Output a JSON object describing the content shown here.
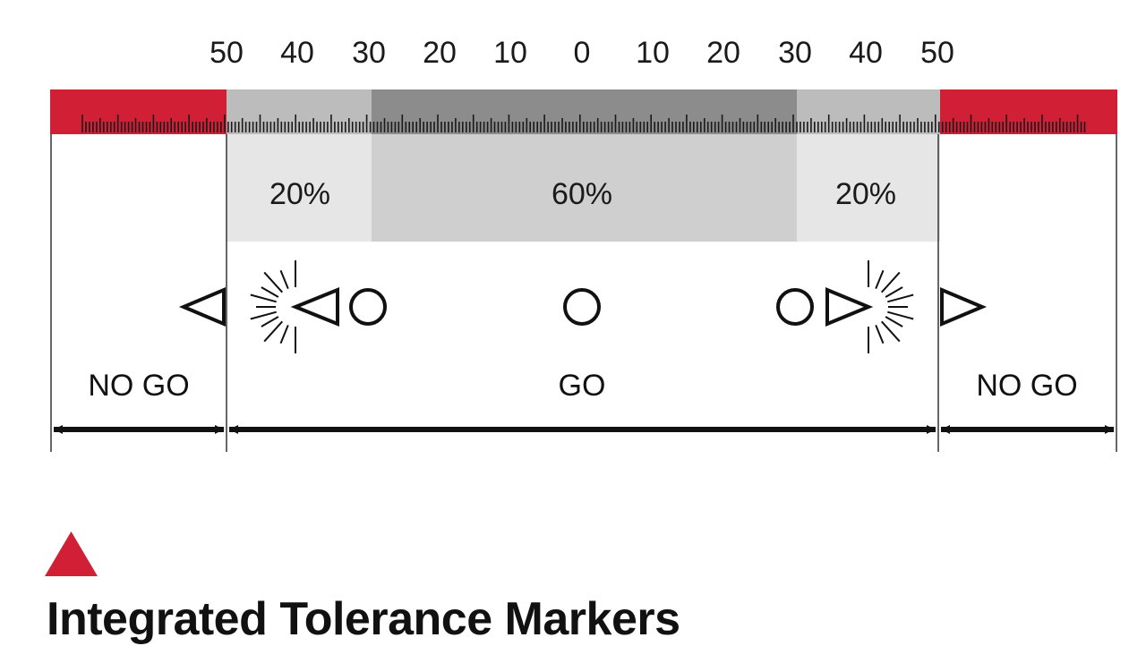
{
  "title": "Integrated Tolerance Markers",
  "scale_numbers": [
    "50",
    "40",
    "30",
    "20",
    "10",
    "0",
    "10",
    "20",
    "30",
    "40",
    "50"
  ],
  "percentages": {
    "left": "20%",
    "center": "60%",
    "right": "20%"
  },
  "zones": {
    "left": "NO GO",
    "center": "GO",
    "right": "NO GO"
  },
  "colors": {
    "no_go": "#d11f35",
    "outer_band": "#bcbcbc",
    "inner_band": "#8c8c8c",
    "outer_zone": "#e6e6e6",
    "inner_zone": "#cfcfcf",
    "ink": "#111111"
  },
  "icons": {
    "accent": "red-triangle-icon",
    "markers": [
      "triangle-left-icon",
      "flash-triangle-left-icon",
      "circle-icon",
      "circle-icon",
      "circle-icon",
      "flash-triangle-right-icon",
      "triangle-right-icon"
    ]
  }
}
